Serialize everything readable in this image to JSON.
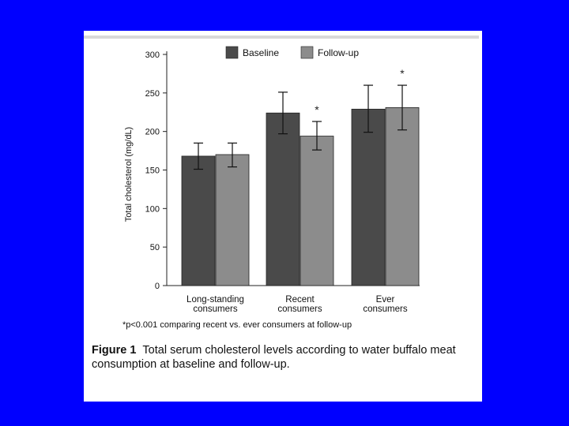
{
  "caption": {
    "figure_label": "Figure 1",
    "text": "Total serum cholesterol levels according to water buffalo meat consumption at baseline and follow-up."
  },
  "colors": {
    "background": "#0000ff",
    "baseline": "#4a4a4a",
    "followup": "#8c8c8c"
  },
  "chart_data": {
    "type": "bar",
    "title": "",
    "ylabel": "Total cholesterol (mg/dL)",
    "xlabel": "",
    "ylim": [
      0,
      300
    ],
    "yticks": [
      0,
      50,
      100,
      150,
      200,
      250,
      300
    ],
    "categories": [
      [
        "Long-standing",
        "consumers"
      ],
      [
        "Recent",
        "consumers"
      ],
      [
        "Ever",
        "consumers"
      ]
    ],
    "series": [
      {
        "name": "Baseline",
        "values": [
          168,
          224,
          229
        ],
        "err_low": [
          151,
          197,
          199
        ],
        "err_high": [
          185,
          251,
          260
        ]
      },
      {
        "name": "Follow-up",
        "values": [
          170,
          194,
          231
        ],
        "err_low": [
          154,
          176,
          202
        ],
        "err_high": [
          185,
          213,
          260
        ]
      }
    ],
    "significance_markers": [
      {
        "category": 1,
        "series": 1,
        "label": "*"
      },
      {
        "category": 2,
        "series": 1,
        "label": "*"
      }
    ],
    "legend_position": "top-center",
    "footnote": "*p<0.001 comparing recent vs. ever consumers at follow-up"
  }
}
